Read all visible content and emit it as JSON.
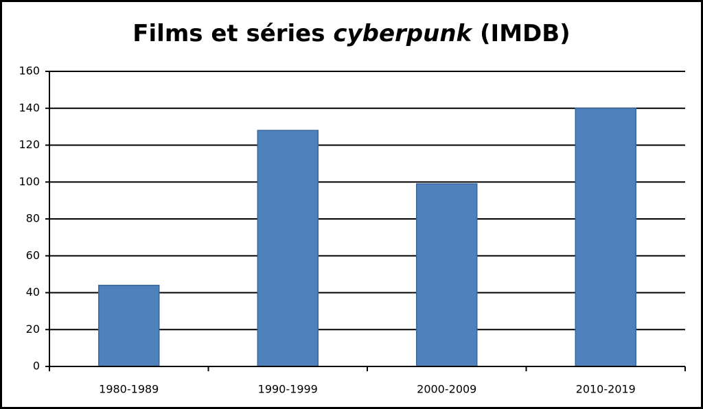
{
  "chart_data": {
    "type": "bar",
    "title": [
      "Films et séries ",
      "cyberpunk",
      " (IMDB)"
    ],
    "categories": [
      "1980-1989",
      "1990-1999",
      "2000-2009",
      "2010-2019"
    ],
    "values": [
      44,
      128,
      99,
      140
    ],
    "color": "#4f81bd",
    "ylim": [
      0,
      160
    ],
    "yticks": [
      0,
      20,
      40,
      60,
      80,
      100,
      120,
      140,
      160
    ],
    "grid": true
  }
}
